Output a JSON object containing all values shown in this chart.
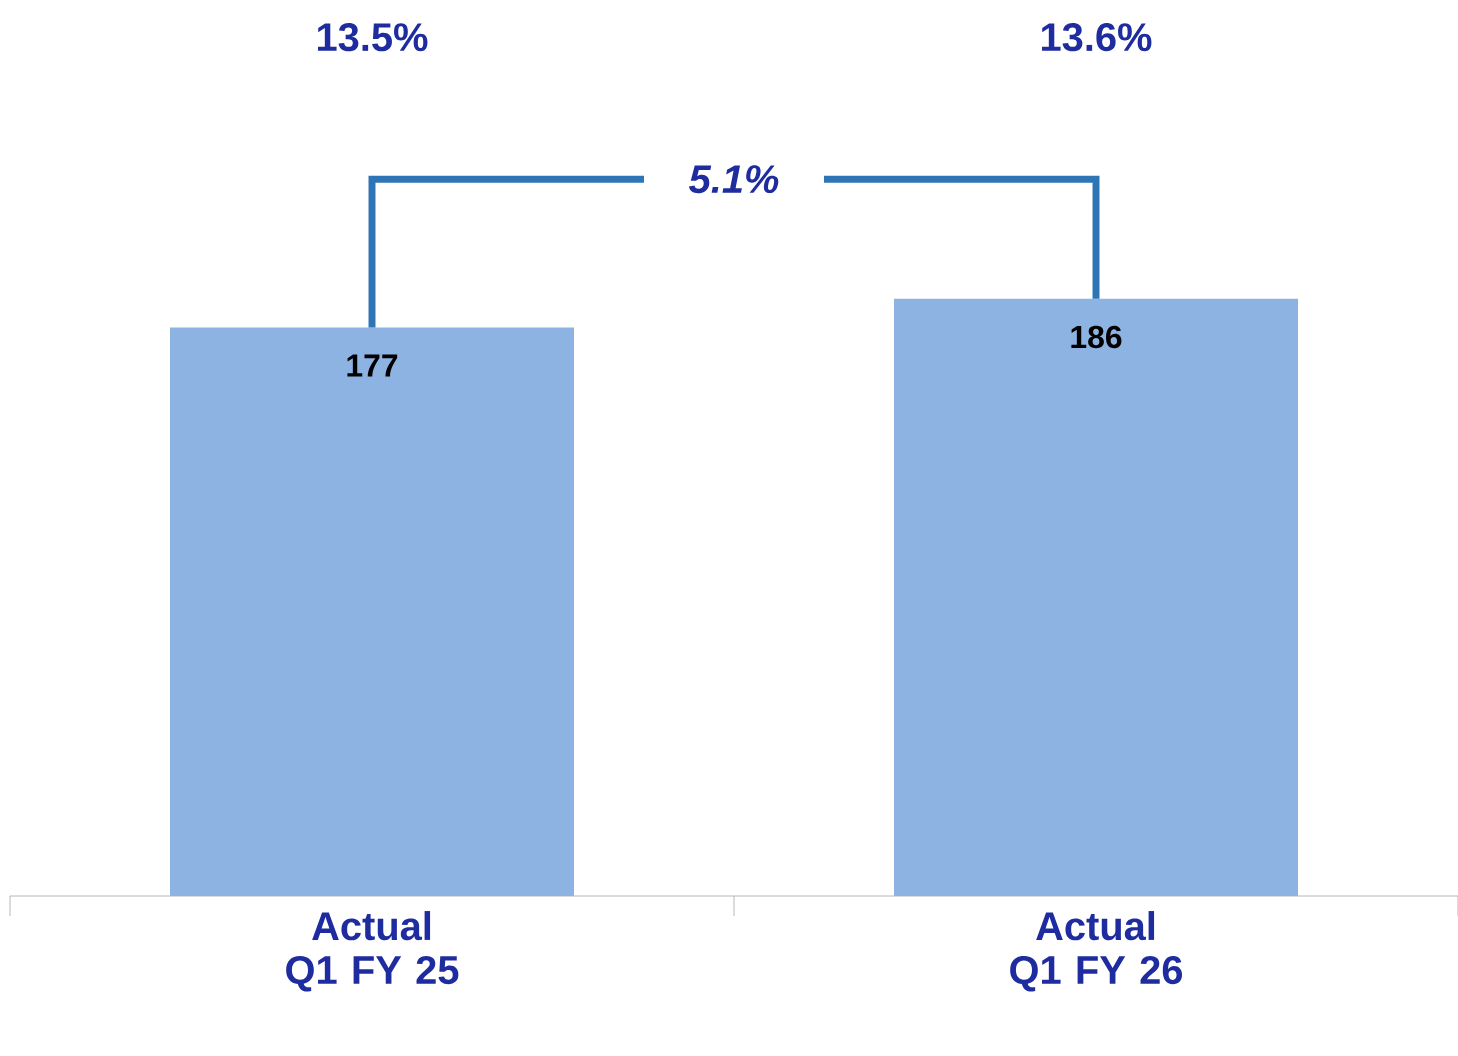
{
  "chart_data": {
    "type": "bar",
    "categories": [
      "Actual Q1 FY 25",
      "Actual Q1 FY 26"
    ],
    "values": [
      177,
      186
    ],
    "color": "#8db3e2",
    "data_labels": true,
    "annotations": [
      "13.5%",
      "13.6%",
      "5.1%"
    ]
  }
}
